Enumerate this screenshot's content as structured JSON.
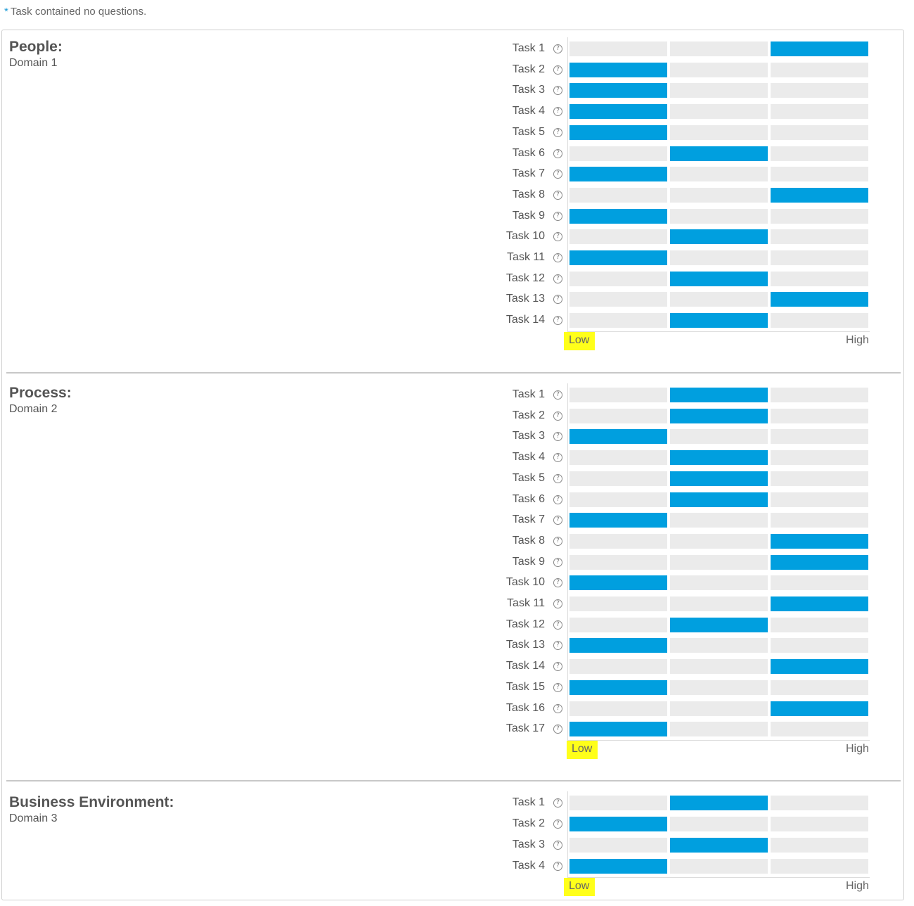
{
  "note": {
    "asterisk": "*",
    "text": "Task contained no questions."
  },
  "scale": {
    "low": "Low",
    "high": "High",
    "levels": 3
  },
  "colors": {
    "bar_active": "#009fdf",
    "bar_inactive": "#ebebeb",
    "highlight": "#ffff1a"
  },
  "chart_data": [
    {
      "type": "bar",
      "title": "People:",
      "subtitle": "Domain 1",
      "categories": [
        "Task 1",
        "Task 2",
        "Task 3",
        "Task 4",
        "Task 5",
        "Task 6",
        "Task 7",
        "Task 8",
        "Task 9",
        "Task 10",
        "Task 11",
        "Task 12",
        "Task 13",
        "Task 14"
      ],
      "values": [
        3,
        1,
        1,
        1,
        1,
        2,
        1,
        3,
        1,
        2,
        1,
        2,
        3,
        2
      ],
      "xlim": [
        1,
        3
      ],
      "xticks": [
        "Low",
        "High"
      ]
    },
    {
      "type": "bar",
      "title": "Process:",
      "subtitle": "Domain 2",
      "categories": [
        "Task 1",
        "Task 2",
        "Task 3",
        "Task 4",
        "Task 5",
        "Task 6",
        "Task 7",
        "Task 8",
        "Task 9",
        "Task 10",
        "Task 11",
        "Task 12",
        "Task 13",
        "Task 14",
        "Task 15",
        "Task 16",
        "Task 17"
      ],
      "values": [
        2,
        2,
        1,
        2,
        2,
        2,
        1,
        3,
        3,
        1,
        3,
        2,
        1,
        3,
        1,
        3,
        1
      ],
      "xlim": [
        1,
        3
      ],
      "xticks": [
        "Low",
        "High"
      ]
    },
    {
      "type": "bar",
      "title": "Business Environment:",
      "subtitle": "Domain 3",
      "categories": [
        "Task 1",
        "Task 2",
        "Task 3",
        "Task 4"
      ],
      "values": [
        2,
        1,
        2,
        1
      ],
      "xlim": [
        1,
        3
      ],
      "xticks": [
        "Low",
        "High"
      ]
    }
  ]
}
